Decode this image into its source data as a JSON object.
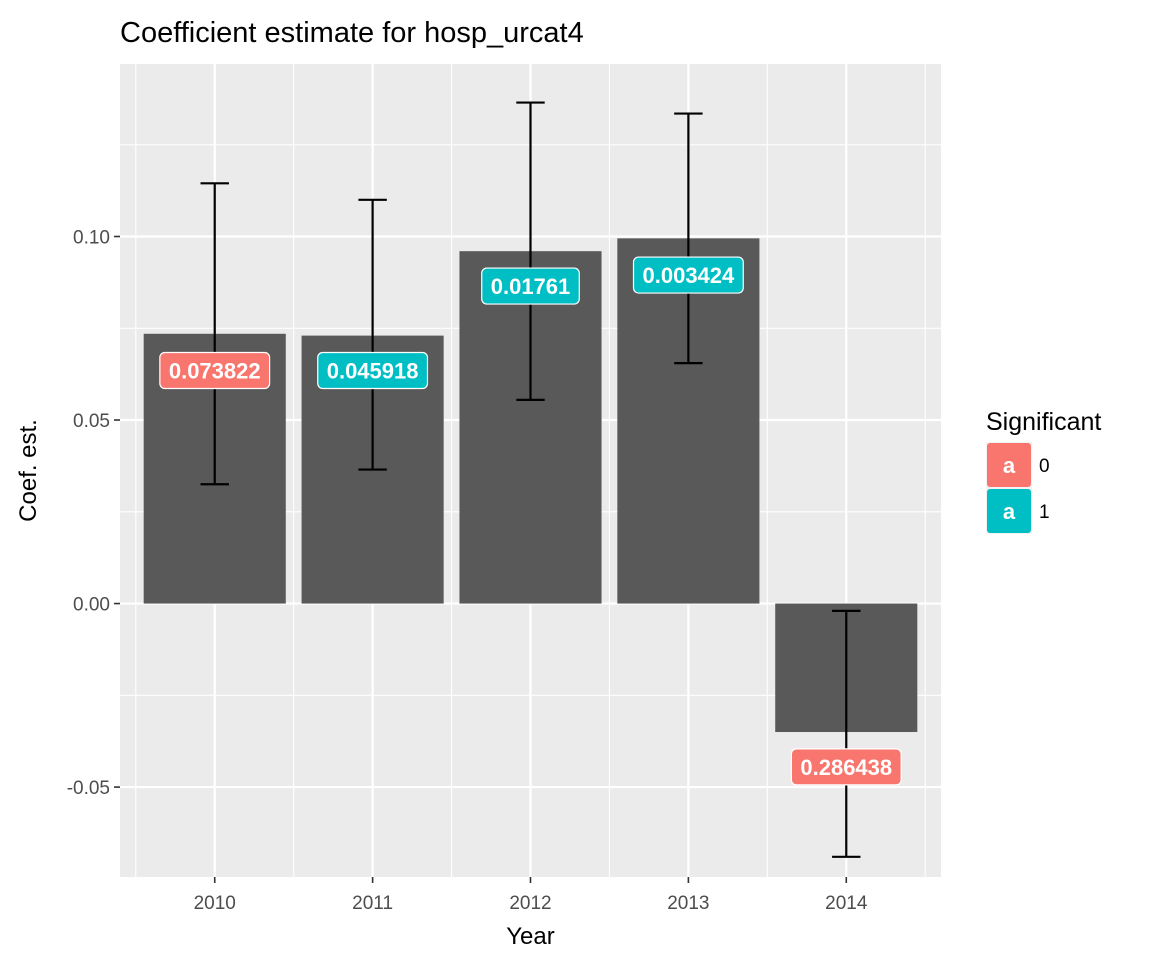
{
  "chart_data": {
    "type": "bar",
    "title": "Coefficient estimate for hosp_urcat4",
    "xlabel": "Year",
    "ylabel": "Coef. est.",
    "categories": [
      "2010",
      "2011",
      "2012",
      "2013",
      "2014"
    ],
    "values": [
      0.0735,
      0.073,
      0.096,
      0.0995,
      -0.035
    ],
    "error_low": [
      0.0325,
      0.0365,
      0.0555,
      0.0655,
      -0.069
    ],
    "error_high": [
      0.1145,
      0.11,
      0.1365,
      0.1335,
      -0.002
    ],
    "labels": [
      "0.073822",
      "0.045918",
      "0.01761",
      "0.003424",
      "0.286438"
    ],
    "label_y": [
      0.0635,
      0.0635,
      0.0865,
      0.0895,
      -0.0445
    ],
    "significant": [
      "0",
      "1",
      "1",
      "1",
      "0"
    ],
    "ylim": [
      -0.0745,
      0.147
    ],
    "yticks": [
      -0.05,
      0.0,
      0.05,
      0.1
    ],
    "ytick_labels": [
      "-0.05",
      "0.00",
      "0.05",
      "0.10"
    ],
    "grid": true,
    "bar_color": "#595959",
    "panel_color": "#ebebeb",
    "legend": {
      "title": "Significant",
      "position": "right",
      "key_letter": "a",
      "entries": [
        {
          "label": "0",
          "color": "#F8766D"
        },
        {
          "label": "1",
          "color": "#00BFC4"
        }
      ]
    }
  }
}
